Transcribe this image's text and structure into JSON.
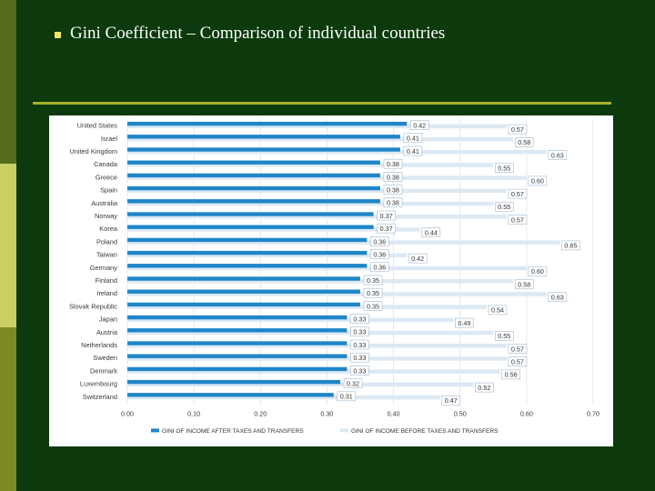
{
  "slide": {
    "title": "Gini Coefficient – Comparison of individual countries"
  },
  "colors": {
    "background": "#0c3a0c",
    "after": "#1f86c8",
    "before": "#dce9f4",
    "label_border": "#9fb8d0"
  },
  "chart_data": {
    "type": "bar",
    "orientation": "horizontal",
    "categories": [
      "United States",
      "Israel",
      "United Kingdom",
      "Canada",
      "Greece",
      "Spain",
      "Australia",
      "Norway",
      "Korea",
      "Poland",
      "Taiwan",
      "Germany",
      "Finland",
      "Ireland",
      "Slovak Republic",
      "Japan",
      "Austria",
      "Netherlands",
      "Sweden",
      "Denmark",
      "Luxembourg",
      "Switzerland"
    ],
    "series": [
      {
        "name": "GINI OF INCOME AFTER TAXES AND TRANSFERS",
        "values": [
          0.42,
          0.41,
          0.41,
          0.38,
          0.38,
          0.38,
          0.38,
          0.37,
          0.37,
          0.36,
          0.36,
          0.36,
          0.35,
          0.35,
          0.35,
          0.33,
          0.33,
          0.33,
          0.33,
          0.33,
          0.32,
          0.31
        ],
        "labels": [
          "0.42",
          "0.41",
          "0.41",
          "0.38",
          "0.38",
          "0.38",
          "0.38",
          "0.37",
          "0.37",
          "0.36",
          "0.36",
          "0.36",
          "0.35",
          "0.35",
          "0.35",
          "0.33",
          "0.33",
          "0.33",
          "0.33",
          "0.33",
          "0.32",
          "0.31"
        ]
      },
      {
        "name": "GINI OF INCOME BEFORE TAXES AND TRANSFERS",
        "values": [
          0.57,
          0.58,
          0.63,
          0.55,
          0.6,
          0.57,
          0.55,
          0.57,
          0.44,
          0.65,
          0.42,
          0.6,
          0.58,
          0.63,
          0.54,
          0.49,
          0.55,
          0.57,
          0.57,
          0.56,
          0.52,
          0.47
        ],
        "labels": [
          "0.57",
          "0.58",
          "0.63",
          "0.55",
          "0.60",
          "0.57",
          "0.55",
          "0.57",
          "0.44",
          "0.65",
          "0.42",
          "0.60",
          "0.58",
          "0.63",
          "0.54",
          "0.49",
          "0.55",
          "0.57",
          "0.57",
          "0.56",
          "0.52",
          "0.47"
        ]
      }
    ],
    "x_ticks": [
      "0.00",
      "0.10",
      "0.20",
      "0.30",
      "0.40",
      "0.50",
      "0.60",
      "0.70"
    ],
    "xlim": [
      0,
      0.7
    ],
    "grid": true,
    "legend_position": "bottom"
  }
}
